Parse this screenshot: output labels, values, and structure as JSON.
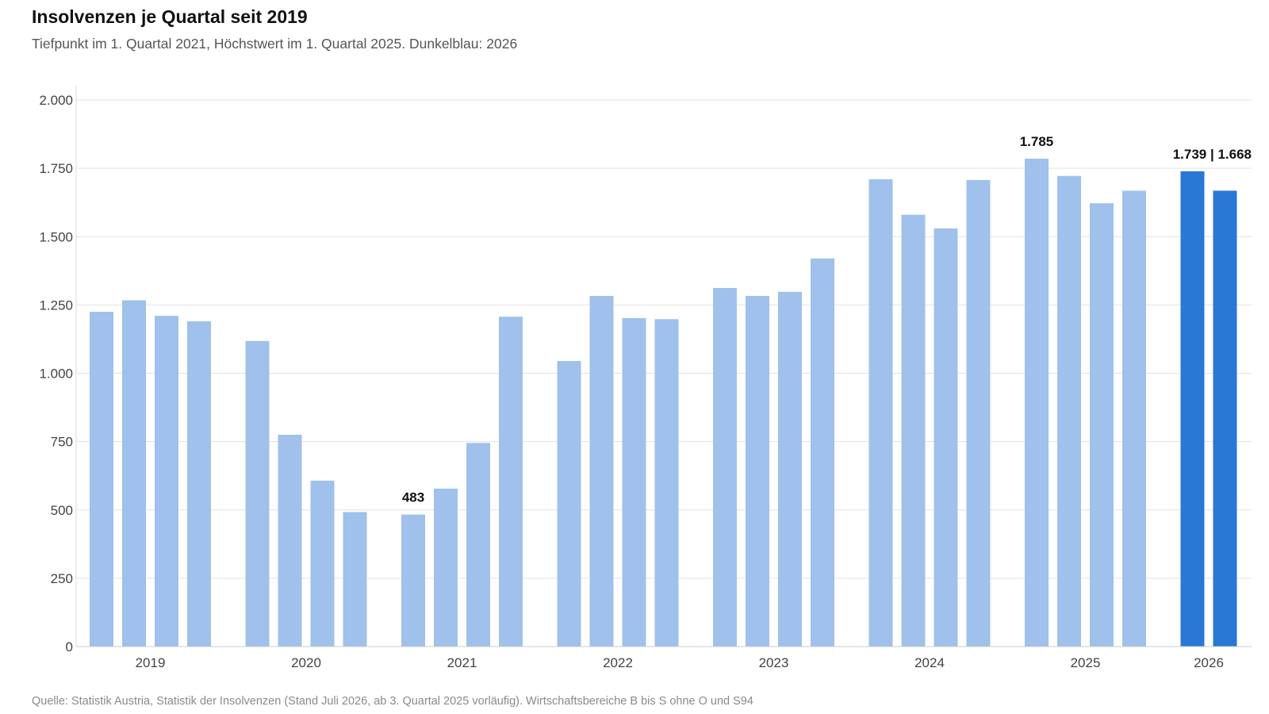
{
  "header": {
    "title": "Insolvenzen je Quartal seit 2019",
    "subtitle": "Tiefpunkt im 1. Quartal 2021, Höchstwert im 1. Quartal 2025. Dunkelblau: 2026"
  },
  "footer": {
    "source": "Quelle: Statistik Austria, Statistik der Insolvenzen (Stand Juli 2026, ab 3. Quartal 2025 vorläufig). Wirtschaftsbereiche B bis S ohne O und S94"
  },
  "chart_data": {
    "type": "bar",
    "ylim": [
      0,
      2000
    ],
    "yticks": [
      0,
      250,
      500,
      750,
      1000,
      1250,
      1500,
      1750,
      2000
    ],
    "ytick_labels": [
      "0",
      "250",
      "500",
      "750",
      "1.000",
      "1.250",
      "1.500",
      "1.750",
      "2.000"
    ],
    "grid": "horizontal",
    "colors": {
      "past": "#9fc1eb",
      "current": "#2a78d6"
    },
    "groups": [
      {
        "year": "2019",
        "values": [
          1225,
          1267,
          1210,
          1190
        ]
      },
      {
        "year": "2020",
        "values": [
          1118,
          775,
          607,
          492
        ]
      },
      {
        "year": "2021",
        "values": [
          483,
          578,
          745,
          1207
        ]
      },
      {
        "year": "2022",
        "values": [
          1045,
          1283,
          1202,
          1198
        ]
      },
      {
        "year": "2023",
        "values": [
          1312,
          1283,
          1298,
          1420
        ]
      },
      {
        "year": "2024",
        "values": [
          1710,
          1580,
          1530,
          1707
        ]
      },
      {
        "year": "2025",
        "values": [
          1785,
          1722,
          1622,
          1668
        ]
      },
      {
        "year": "2026",
        "values": [
          1739,
          1668
        ],
        "highlight": true
      }
    ],
    "annotations": [
      {
        "text": "483",
        "group": 2,
        "bar": 0
      },
      {
        "text": "1.785",
        "group": 6,
        "bar": 0
      },
      {
        "text": "1.739 | 1.668",
        "group": 7,
        "bar": 0
      }
    ]
  }
}
